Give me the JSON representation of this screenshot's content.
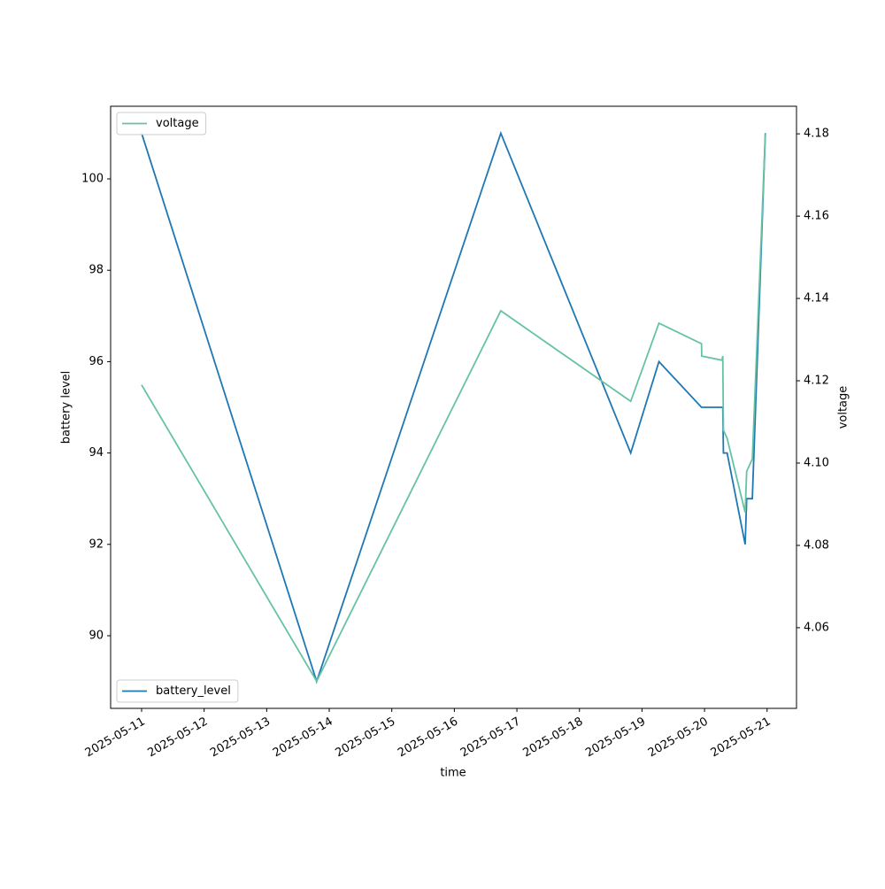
{
  "chart_data": {
    "type": "line",
    "x_label": "time",
    "y_label": "battery level",
    "y2_label": "voltage",
    "x": [
      "2025-05-11 00:00",
      "2025-05-13 19:10",
      "2025-05-16 17:50",
      "2025-05-18 19:40",
      "2025-05-19 06:30",
      "2025-05-19 22:50",
      "2025-05-19 22:55",
      "2025-05-20 06:40",
      "2025-05-20 07:00",
      "2025-05-20 07:15",
      "2025-05-20 08:40",
      "2025-05-20 15:35",
      "2025-05-20 16:10",
      "2025-05-20 18:20",
      "2025-05-20 23:20"
    ],
    "series": [
      {
        "name": "battery_level",
        "color": "#1f77b4",
        "legend": "lower left",
        "values": [
          101,
          89,
          101,
          94,
          96,
          95,
          95,
          95,
          95,
          94,
          94,
          92,
          93,
          93,
          101
        ]
      },
      {
        "name": "voltage",
        "color": "#66c2a5",
        "axis": "y2",
        "legend": "upper left",
        "values": [
          4.119,
          4.047,
          4.137,
          4.115,
          4.134,
          4.129,
          4.126,
          4.125,
          4.126,
          4.108,
          4.106,
          4.088,
          4.098,
          4.101,
          4.18
        ]
      }
    ],
    "xlim": [
      "2025-05-10 12:07",
      "2025-05-21 11:17"
    ],
    "xticks": [
      "2025-05-11",
      "2025-05-12",
      "2025-05-13",
      "2025-05-14",
      "2025-05-15",
      "2025-05-16",
      "2025-05-17",
      "2025-05-18",
      "2025-05-19",
      "2025-05-20",
      "2025-05-21"
    ],
    "ylim": [
      88.41,
      101.59
    ],
    "yticks": [
      90,
      92,
      94,
      96,
      98,
      100
    ],
    "y2lim": [
      4.0404,
      4.1867
    ],
    "y2ticks": [
      4.06,
      4.08,
      {
        "value": 4.1,
        "label": "4.10"
      },
      4.12,
      4.14,
      4.16,
      4.18
    ]
  }
}
